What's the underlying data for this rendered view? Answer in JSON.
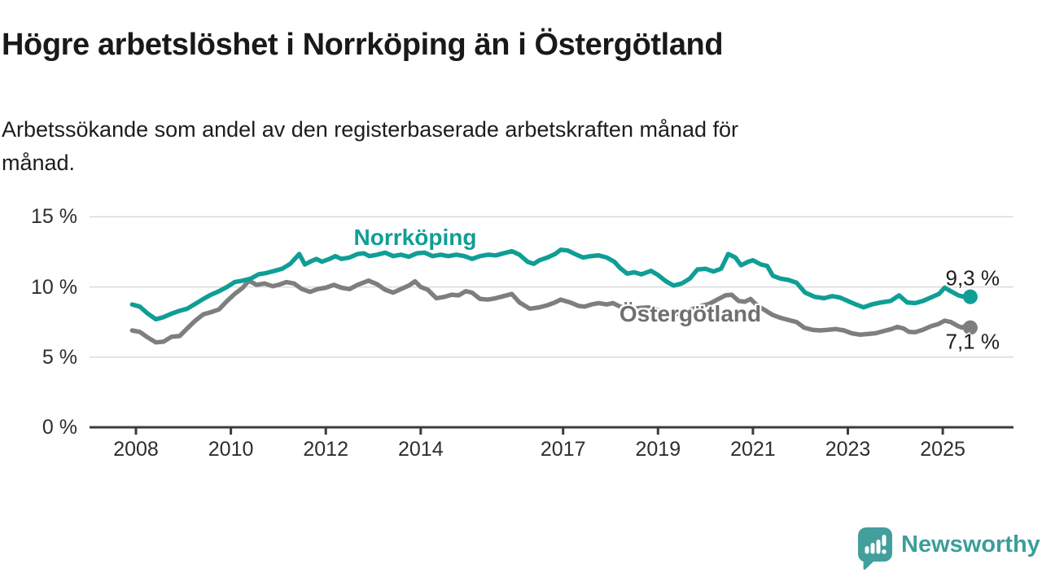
{
  "header": {
    "title": "Högre arbetslöshet i Norrköping än i Östergötland",
    "subtitle_lines": [
      "Arbetssökande som andel av den registerbaserade arbetskraften månad för",
      "månad."
    ]
  },
  "branding": {
    "name": "Newsworthy",
    "logo_icon": "speech-bubble-bar-chart",
    "color": "#3d9e9a"
  },
  "colors": {
    "norrkoping": "#0f9e95",
    "ostergotland": "#7e7e7e",
    "axis": "#3c3c3c",
    "grid": "#dadada",
    "text": "#1d1d1d"
  },
  "chart_data": {
    "type": "line",
    "title": "Högre arbetslöshet i Norrköping än i Östergötland",
    "subtitle": "Arbetssökande som andel av den registerbaserade arbetskraften månad för månad.",
    "xlabel": "",
    "ylabel": "",
    "y_unit": "%",
    "x_unit": "year, monthly values",
    "ylim": [
      0,
      15
    ],
    "xlim": [
      2007.92,
      2025.58
    ],
    "grid": "horizontal",
    "legend_position": "inline-labels",
    "y_ticks": [
      {
        "value": 0,
        "label": "0 %"
      },
      {
        "value": 5,
        "label": "5 %"
      },
      {
        "value": 10,
        "label": "10 %"
      },
      {
        "value": 15,
        "label": "15 %"
      }
    ],
    "x_ticks": [
      {
        "value": 2008,
        "label": "2008"
      },
      {
        "value": 2010,
        "label": "2010"
      },
      {
        "value": 2012,
        "label": "2012"
      },
      {
        "value": 2014,
        "label": "2014"
      },
      {
        "value": 2017,
        "label": "2017"
      },
      {
        "value": 2019,
        "label": "2019"
      },
      {
        "value": 2021,
        "label": "2021"
      },
      {
        "value": 2023,
        "label": "2023"
      },
      {
        "value": 2025,
        "label": "2025"
      }
    ],
    "series": [
      {
        "name": "Norrköping",
        "color": "#0f9e95",
        "end_label": "9,3 %",
        "last_value": 9.3,
        "points": [
          [
            2007.92,
            8.75
          ],
          [
            2008.08,
            8.6
          ],
          [
            2008.25,
            8.1
          ],
          [
            2008.42,
            7.7
          ],
          [
            2008.58,
            7.85
          ],
          [
            2008.75,
            8.1
          ],
          [
            2008.92,
            8.3
          ],
          [
            2009.08,
            8.45
          ],
          [
            2009.25,
            8.8
          ],
          [
            2009.42,
            9.15
          ],
          [
            2009.58,
            9.45
          ],
          [
            2009.75,
            9.7
          ],
          [
            2009.92,
            10.0
          ],
          [
            2010.08,
            10.35
          ],
          [
            2010.25,
            10.45
          ],
          [
            2010.42,
            10.6
          ],
          [
            2010.58,
            10.9
          ],
          [
            2010.75,
            11.0
          ],
          [
            2010.92,
            11.15
          ],
          [
            2011.08,
            11.3
          ],
          [
            2011.25,
            11.65
          ],
          [
            2011.44,
            12.35
          ],
          [
            2011.56,
            11.6
          ],
          [
            2011.7,
            11.85
          ],
          [
            2011.8,
            12.0
          ],
          [
            2011.92,
            11.8
          ],
          [
            2012.08,
            12.0
          ],
          [
            2012.2,
            12.2
          ],
          [
            2012.33,
            12.0
          ],
          [
            2012.5,
            12.1
          ],
          [
            2012.67,
            12.35
          ],
          [
            2012.8,
            12.4
          ],
          [
            2012.92,
            12.2
          ],
          [
            2013.08,
            12.3
          ],
          [
            2013.25,
            12.45
          ],
          [
            2013.42,
            12.2
          ],
          [
            2013.58,
            12.3
          ],
          [
            2013.75,
            12.15
          ],
          [
            2013.92,
            12.4
          ],
          [
            2014.08,
            12.45
          ],
          [
            2014.25,
            12.2
          ],
          [
            2014.42,
            12.3
          ],
          [
            2014.58,
            12.2
          ],
          [
            2014.75,
            12.3
          ],
          [
            2014.92,
            12.2
          ],
          [
            2015.08,
            12.0
          ],
          [
            2015.25,
            12.2
          ],
          [
            2015.42,
            12.3
          ],
          [
            2015.58,
            12.25
          ],
          [
            2015.75,
            12.4
          ],
          [
            2015.92,
            12.55
          ],
          [
            2016.08,
            12.3
          ],
          [
            2016.25,
            11.8
          ],
          [
            2016.38,
            11.65
          ],
          [
            2016.5,
            11.9
          ],
          [
            2016.67,
            12.1
          ],
          [
            2016.83,
            12.35
          ],
          [
            2016.95,
            12.65
          ],
          [
            2017.1,
            12.6
          ],
          [
            2017.25,
            12.35
          ],
          [
            2017.42,
            12.1
          ],
          [
            2017.58,
            12.2
          ],
          [
            2017.75,
            12.25
          ],
          [
            2017.92,
            12.1
          ],
          [
            2018.08,
            11.8
          ],
          [
            2018.2,
            11.35
          ],
          [
            2018.35,
            10.95
          ],
          [
            2018.5,
            11.05
          ],
          [
            2018.65,
            10.9
          ],
          [
            2018.85,
            11.15
          ],
          [
            2019.0,
            10.85
          ],
          [
            2019.17,
            10.4
          ],
          [
            2019.33,
            10.1
          ],
          [
            2019.5,
            10.25
          ],
          [
            2019.67,
            10.6
          ],
          [
            2019.83,
            11.25
          ],
          [
            2020.0,
            11.3
          ],
          [
            2020.17,
            11.1
          ],
          [
            2020.33,
            11.3
          ],
          [
            2020.48,
            12.35
          ],
          [
            2020.63,
            12.1
          ],
          [
            2020.75,
            11.55
          ],
          [
            2020.9,
            11.8
          ],
          [
            2021.0,
            11.9
          ],
          [
            2021.17,
            11.6
          ],
          [
            2021.3,
            11.5
          ],
          [
            2021.42,
            10.8
          ],
          [
            2021.58,
            10.6
          ],
          [
            2021.75,
            10.5
          ],
          [
            2021.92,
            10.3
          ],
          [
            2022.1,
            9.6
          ],
          [
            2022.3,
            9.3
          ],
          [
            2022.5,
            9.2
          ],
          [
            2022.67,
            9.35
          ],
          [
            2022.83,
            9.25
          ],
          [
            2023.0,
            9.0
          ],
          [
            2023.17,
            8.75
          ],
          [
            2023.33,
            8.55
          ],
          [
            2023.5,
            8.75
          ],
          [
            2023.7,
            8.9
          ],
          [
            2023.9,
            9.0
          ],
          [
            2024.08,
            9.4
          ],
          [
            2024.25,
            8.9
          ],
          [
            2024.42,
            8.85
          ],
          [
            2024.58,
            9.0
          ],
          [
            2024.75,
            9.25
          ],
          [
            2024.92,
            9.5
          ],
          [
            2025.04,
            9.95
          ],
          [
            2025.17,
            9.7
          ],
          [
            2025.33,
            9.4
          ],
          [
            2025.45,
            9.3
          ],
          [
            2025.58,
            9.3
          ]
        ]
      },
      {
        "name": "Östergötland",
        "color": "#7e7e7e",
        "end_label": "7,1 %",
        "last_value": 7.1,
        "points": [
          [
            2007.92,
            6.9
          ],
          [
            2008.08,
            6.8
          ],
          [
            2008.25,
            6.4
          ],
          [
            2008.42,
            6.05
          ],
          [
            2008.58,
            6.1
          ],
          [
            2008.75,
            6.45
          ],
          [
            2008.92,
            6.5
          ],
          [
            2009.08,
            7.05
          ],
          [
            2009.25,
            7.6
          ],
          [
            2009.42,
            8.05
          ],
          [
            2009.58,
            8.2
          ],
          [
            2009.75,
            8.4
          ],
          [
            2009.92,
            9.0
          ],
          [
            2010.08,
            9.5
          ],
          [
            2010.25,
            9.95
          ],
          [
            2010.38,
            10.45
          ],
          [
            2010.54,
            10.15
          ],
          [
            2010.71,
            10.25
          ],
          [
            2010.88,
            10.05
          ],
          [
            2011.0,
            10.15
          ],
          [
            2011.17,
            10.35
          ],
          [
            2011.33,
            10.25
          ],
          [
            2011.5,
            9.85
          ],
          [
            2011.67,
            9.65
          ],
          [
            2011.83,
            9.85
          ],
          [
            2012.0,
            9.95
          ],
          [
            2012.17,
            10.15
          ],
          [
            2012.33,
            9.95
          ],
          [
            2012.5,
            9.85
          ],
          [
            2012.67,
            10.15
          ],
          [
            2012.9,
            10.45
          ],
          [
            2013.08,
            10.2
          ],
          [
            2013.25,
            9.8
          ],
          [
            2013.42,
            9.6
          ],
          [
            2013.58,
            9.85
          ],
          [
            2013.75,
            10.1
          ],
          [
            2013.88,
            10.4
          ],
          [
            2014.0,
            10.0
          ],
          [
            2014.15,
            9.8
          ],
          [
            2014.33,
            9.2
          ],
          [
            2014.5,
            9.3
          ],
          [
            2014.65,
            9.45
          ],
          [
            2014.8,
            9.4
          ],
          [
            2014.95,
            9.7
          ],
          [
            2015.08,
            9.6
          ],
          [
            2015.25,
            9.15
          ],
          [
            2015.42,
            9.1
          ],
          [
            2015.58,
            9.2
          ],
          [
            2015.75,
            9.35
          ],
          [
            2015.92,
            9.5
          ],
          [
            2016.08,
            8.9
          ],
          [
            2016.3,
            8.45
          ],
          [
            2016.5,
            8.55
          ],
          [
            2016.67,
            8.7
          ],
          [
            2016.83,
            8.9
          ],
          [
            2016.95,
            9.1
          ],
          [
            2017.15,
            8.9
          ],
          [
            2017.33,
            8.65
          ],
          [
            2017.45,
            8.6
          ],
          [
            2017.6,
            8.75
          ],
          [
            2017.75,
            8.85
          ],
          [
            2017.92,
            8.75
          ],
          [
            2018.05,
            8.85
          ],
          [
            2018.2,
            8.6
          ],
          [
            2018.4,
            8.45
          ],
          [
            2018.6,
            8.5
          ],
          [
            2018.8,
            8.55
          ],
          [
            2019.0,
            8.35
          ],
          [
            2019.2,
            8.1
          ],
          [
            2019.35,
            8.05
          ],
          [
            2019.55,
            8.2
          ],
          [
            2019.75,
            8.45
          ],
          [
            2019.92,
            8.65
          ],
          [
            2020.08,
            8.8
          ],
          [
            2020.25,
            9.1
          ],
          [
            2020.42,
            9.4
          ],
          [
            2020.55,
            9.45
          ],
          [
            2020.7,
            9.0
          ],
          [
            2020.83,
            8.95
          ],
          [
            2020.95,
            9.15
          ],
          [
            2021.1,
            8.65
          ],
          [
            2021.25,
            8.35
          ],
          [
            2021.42,
            8.0
          ],
          [
            2021.58,
            7.8
          ],
          [
            2021.75,
            7.65
          ],
          [
            2021.92,
            7.5
          ],
          [
            2022.08,
            7.1
          ],
          [
            2022.25,
            6.95
          ],
          [
            2022.42,
            6.9
          ],
          [
            2022.58,
            6.95
          ],
          [
            2022.75,
            7.0
          ],
          [
            2022.92,
            6.9
          ],
          [
            2023.08,
            6.7
          ],
          [
            2023.25,
            6.6
          ],
          [
            2023.42,
            6.65
          ],
          [
            2023.58,
            6.7
          ],
          [
            2023.75,
            6.85
          ],
          [
            2023.92,
            7.0
          ],
          [
            2024.04,
            7.15
          ],
          [
            2024.17,
            7.05
          ],
          [
            2024.29,
            6.8
          ],
          [
            2024.42,
            6.78
          ],
          [
            2024.58,
            6.95
          ],
          [
            2024.75,
            7.2
          ],
          [
            2024.9,
            7.35
          ],
          [
            2025.04,
            7.6
          ],
          [
            2025.17,
            7.5
          ],
          [
            2025.33,
            7.2
          ],
          [
            2025.42,
            7.1
          ],
          [
            2025.5,
            7.3
          ],
          [
            2025.58,
            7.1
          ]
        ]
      }
    ]
  }
}
